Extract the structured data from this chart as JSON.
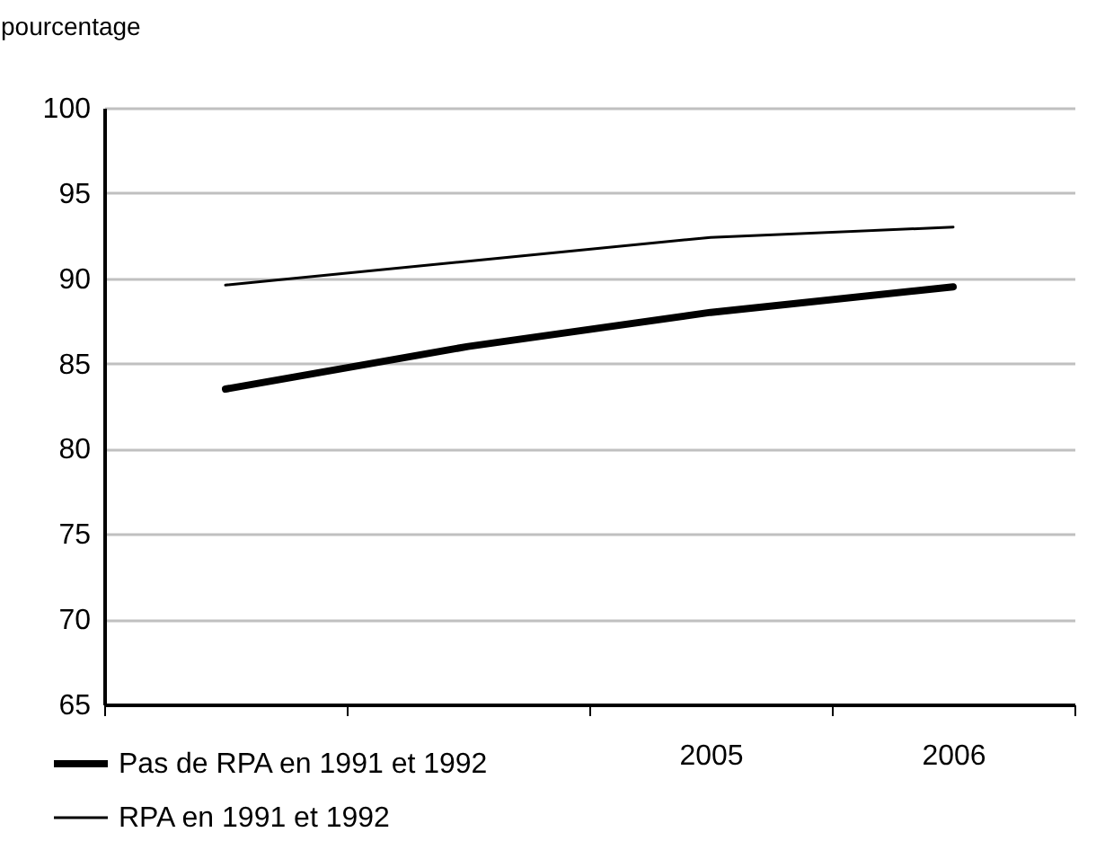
{
  "chart_data": {
    "type": "line",
    "ylabel": "pourcentage",
    "categories": [
      null,
      null,
      "2005",
      "2006"
    ],
    "series": [
      {
        "name": "Pas de RPA en 1991 et 1992",
        "color": "#000000",
        "values": [
          83.5,
          86.0,
          88.0,
          89.5
        ]
      },
      {
        "name": "RPA en 1991 et 1992",
        "color": "#000000",
        "values": [
          89.6,
          91.0,
          92.4,
          93.0
        ]
      }
    ],
    "ylim": [
      65,
      100
    ],
    "yticks": [
      65,
      70,
      75,
      80,
      85,
      90,
      95,
      100
    ],
    "grid": "y",
    "legend": "bottom left"
  }
}
